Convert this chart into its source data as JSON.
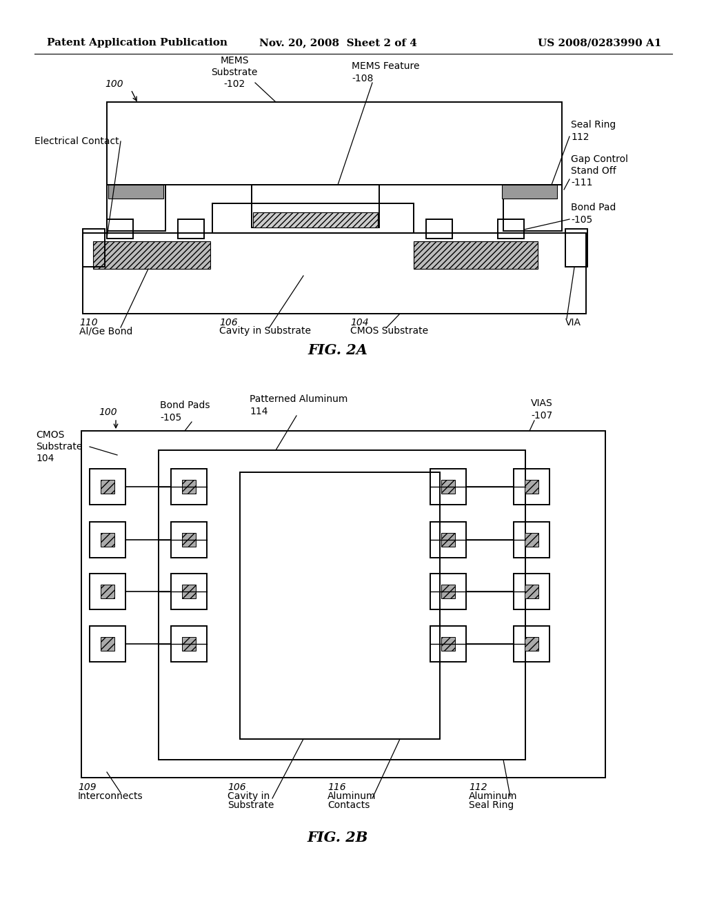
{
  "background_color": "#ffffff",
  "header_left": "Patent Application Publication",
  "header_center": "Nov. 20, 2008  Sheet 2 of 4",
  "header_right": "US 2008/0283990 A1",
  "fig2a_label": "FIG. 2A",
  "fig2b_label": "FIG. 2B",
  "lw": 1.4,
  "lc": "black",
  "fs_header": 11,
  "fs_body": 10,
  "fs_fig": 15
}
